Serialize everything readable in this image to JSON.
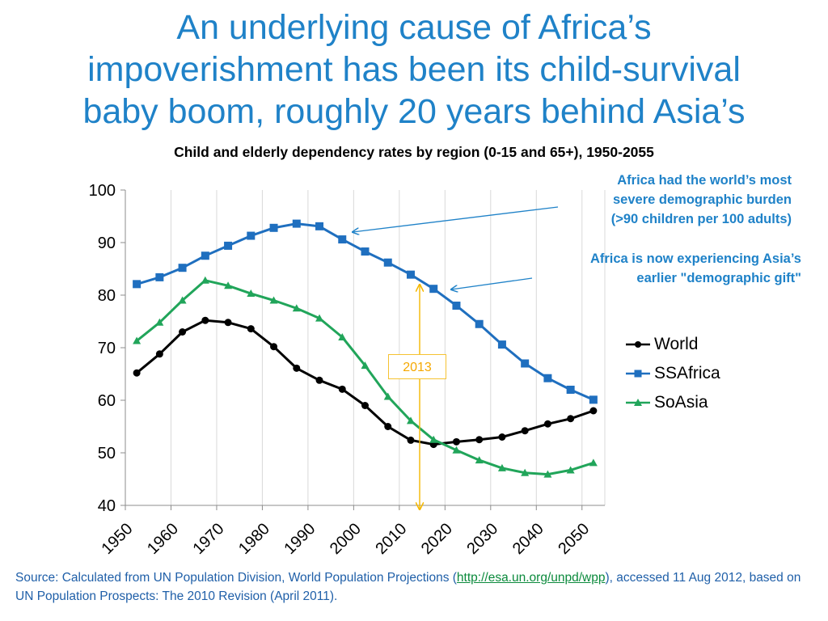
{
  "slide": {
    "title_lines": [
      "An underlying cause of Africa’s",
      "impoverishment has been its child-survival",
      "baby boom, roughly 20 years behind Asia’s"
    ]
  },
  "annotations": {
    "burden_lines": [
      "Africa had the world’s most",
      "severe demographic burden",
      "(>90 children per 100 adults)"
    ],
    "gift_lines": [
      "Africa is now experiencing Asia’s",
      "earlier \"demographic gift\""
    ],
    "year_marker": "2013"
  },
  "footnote": {
    "prefix": "Source: Calculated from UN Population Division, World Population Projections (",
    "link_text": "http://esa.un.org/unpd/wpp",
    "suffix": "), accessed 11 Aug 2012, based on UN Population Prospects: The 2010 Revision (April 2011)."
  },
  "chart_data": {
    "type": "line",
    "title": "Child and elderly dependency rates by region (0-15 and 65+), 1950-2055",
    "xlabel": "",
    "ylabel": "",
    "x": [
      1952.5,
      1957.5,
      1962.5,
      1967.5,
      1972.5,
      1977.5,
      1982.5,
      1987.5,
      1992.5,
      1997.5,
      2002.5,
      2007.5,
      2012.5,
      2017.5,
      2022.5,
      2027.5,
      2032.5,
      2037.5,
      2042.5,
      2047.5,
      2052.5
    ],
    "xlim": [
      1950,
      2055
    ],
    "ylim": [
      40,
      100
    ],
    "x_ticks": [
      "1950",
      "1960",
      "1970",
      "1980",
      "1990",
      "2000",
      "2010",
      "2020",
      "2030",
      "2040",
      "2050"
    ],
    "y_ticks": [
      "40",
      "50",
      "60",
      "70",
      "80",
      "90",
      "100"
    ],
    "grid": "vertical",
    "legend_position": "right",
    "series": [
      {
        "name": "World",
        "color": "#000000",
        "marker": "circle",
        "values": [
          65.2,
          68.8,
          73.0,
          75.2,
          74.8,
          73.6,
          70.2,
          66.1,
          63.8,
          62.1,
          59.0,
          55.0,
          52.4,
          51.6,
          52.1,
          52.5,
          53.0,
          54.2,
          55.5,
          56.5,
          58.0
        ]
      },
      {
        "name": "SSAfrica",
        "color": "#1f6fbf",
        "marker": "square",
        "values": [
          82.1,
          83.4,
          85.2,
          87.5,
          89.4,
          91.3,
          92.8,
          93.6,
          93.1,
          90.6,
          88.3,
          86.2,
          83.9,
          81.2,
          78.0,
          74.5,
          70.6,
          67.0,
          64.2,
          62.0,
          60.1
        ]
      },
      {
        "name": "SoAsia",
        "color": "#21a55a",
        "marker": "triangle",
        "values": [
          71.3,
          74.8,
          79.0,
          82.8,
          81.8,
          80.3,
          79.0,
          77.5,
          75.6,
          72.0,
          66.6,
          60.7,
          56.1,
          52.5,
          50.5,
          48.6,
          47.1,
          46.2,
          45.9,
          46.7,
          48.1
        ]
      }
    ]
  }
}
